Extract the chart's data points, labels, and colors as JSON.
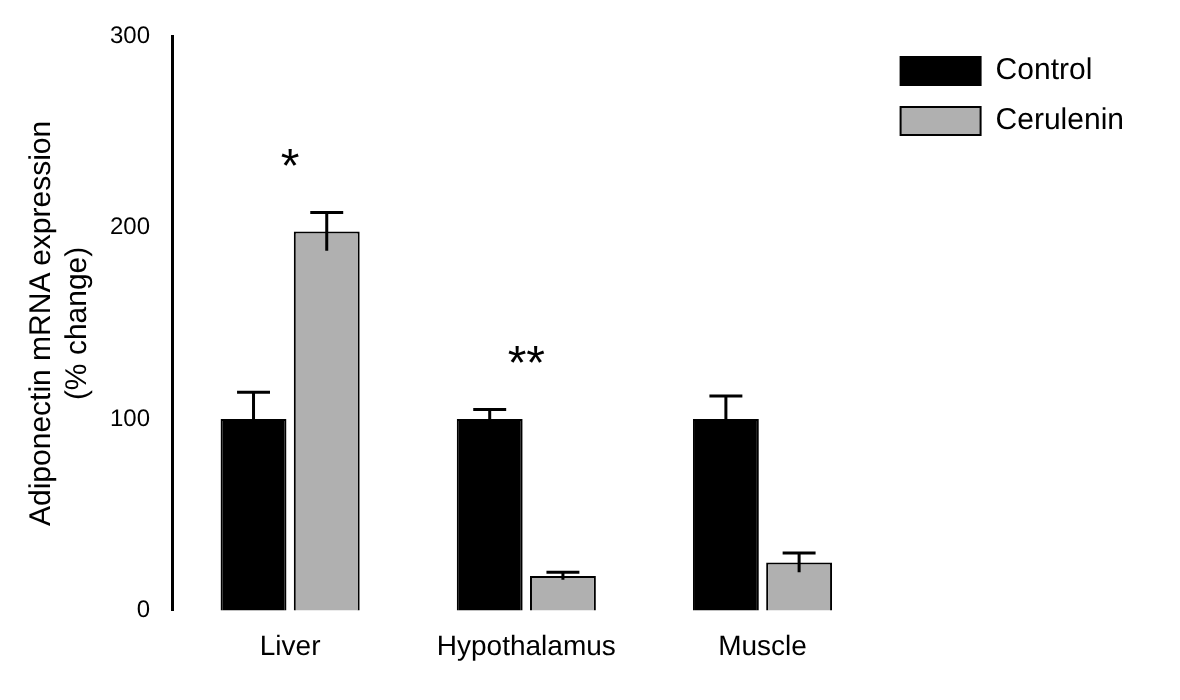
{
  "chart_data": {
    "type": "bar",
    "ylabel": "Adiponectin mRNA expression (% change)",
    "categories": [
      "Liver",
      "Hypothalamus",
      "Muscle"
    ],
    "series": [
      {
        "name": "Control",
        "color": "#000000",
        "values": [
          100,
          100,
          100
        ],
        "errors": [
          14,
          5,
          12
        ]
      },
      {
        "name": "Cerulenin",
        "color": "#b0b0b0",
        "values": [
          198,
          18,
          25
        ],
        "errors": [
          10,
          2,
          5
        ]
      }
    ],
    "ylim": [
      0,
      300
    ],
    "yticks": [
      0,
      100,
      200,
      300
    ],
    "grid": false,
    "legend": "right",
    "annotations": [
      "*",
      "**"
    ]
  }
}
